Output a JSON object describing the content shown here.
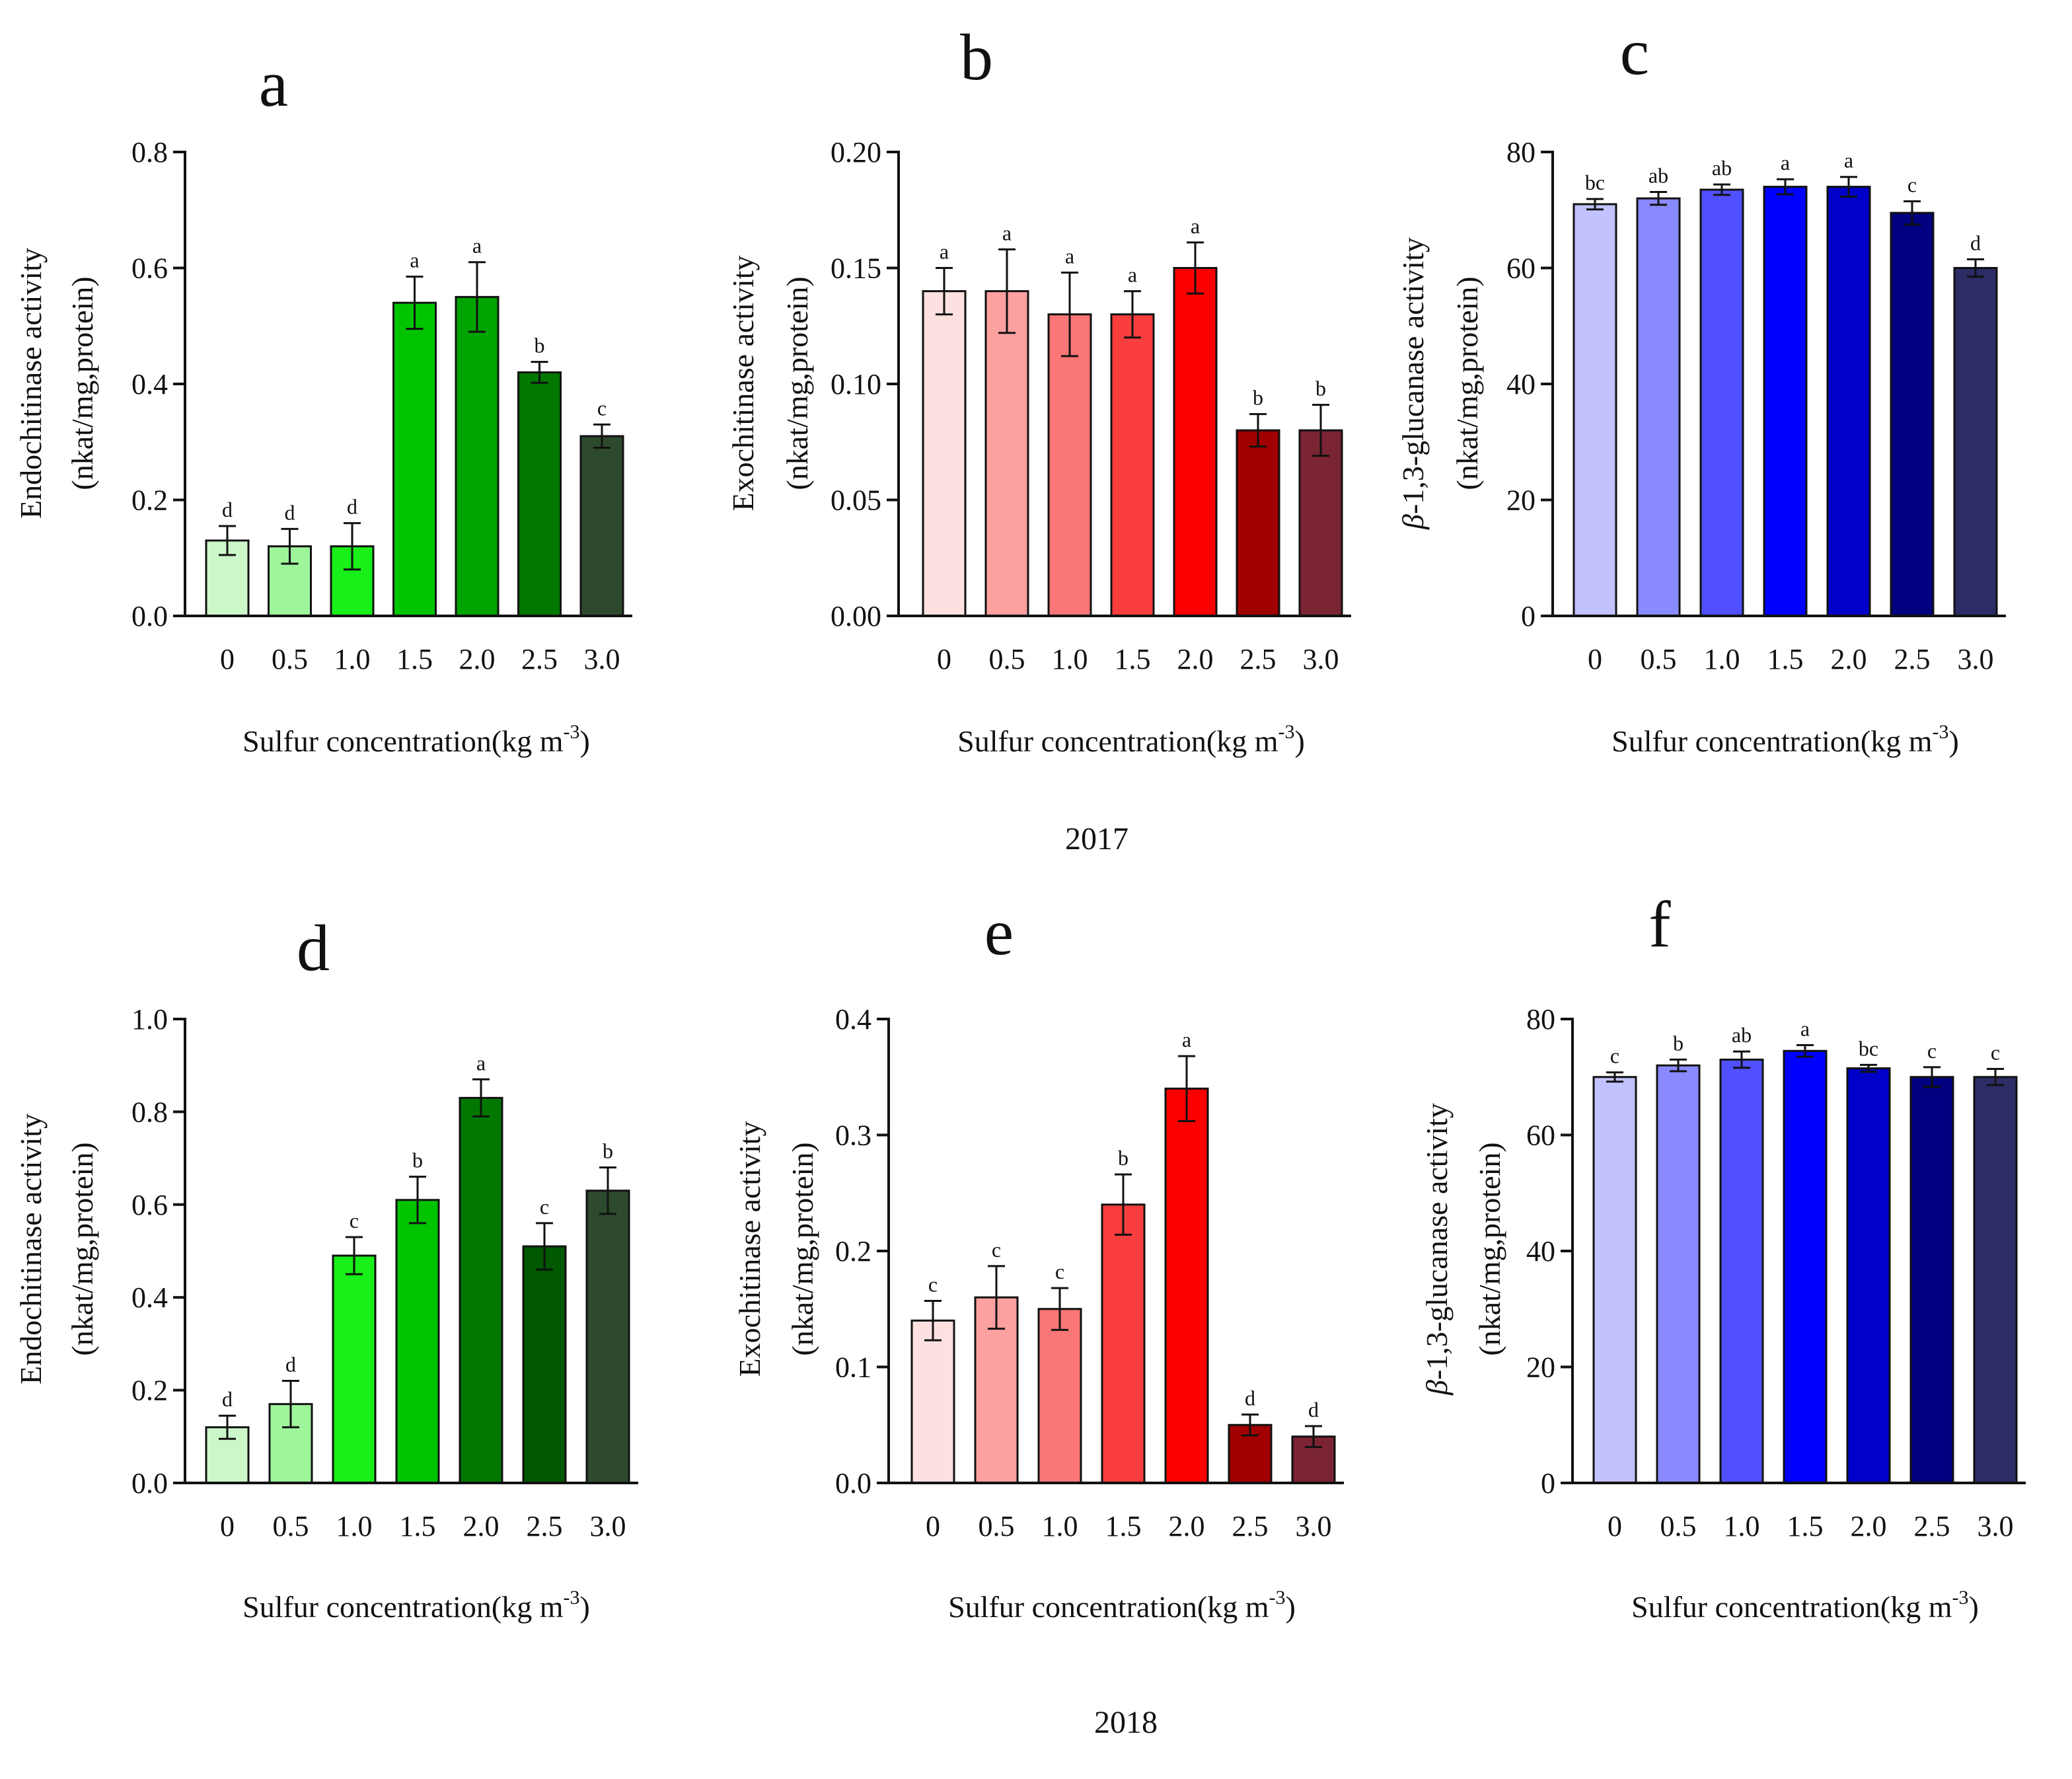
{
  "years": [
    "2017",
    "2018"
  ],
  "chart_data": [
    {
      "type": "bar",
      "panel": "a",
      "year": "2017",
      "ylabel_line1": "Endochitinase activity",
      "ylabel_line2": "(nkat/mg,protein)",
      "xlabel_main": "Sulfur concentration(kg m",
      "xlabel_sup": "-3",
      "xlabel_end": ")",
      "categories": [
        "0",
        "0.5",
        "1.0",
        "1.5",
        "2.0",
        "2.5",
        "3.0"
      ],
      "values": [
        0.13,
        0.12,
        0.12,
        0.54,
        0.55,
        0.42,
        0.31
      ],
      "errors": [
        0.025,
        0.03,
        0.04,
        0.045,
        0.06,
        0.018,
        0.02
      ],
      "letters": [
        "d",
        "d",
        "d",
        "a",
        "a",
        "b",
        "c"
      ],
      "colors": [
        "#ccf7c8",
        "#9ef59a",
        "#19ef19",
        "#00c400",
        "#00a400",
        "#007800",
        "#2e4a2e"
      ],
      "ylim": [
        0,
        0.8
      ],
      "yticks": [
        "0.0",
        "0.2",
        "0.4",
        "0.6",
        "0.8"
      ]
    },
    {
      "type": "bar",
      "panel": "b",
      "year": "2017",
      "ylabel_line1": "Exochitinase activity",
      "ylabel_line2": "(nkat/mg,protein)",
      "xlabel_main": "Sulfur concentration(kg m",
      "xlabel_sup": "-3",
      "xlabel_end": ")",
      "categories": [
        "0",
        "0.5",
        "1.0",
        "1.5",
        "2.0",
        "2.5",
        "3.0"
      ],
      "values": [
        0.14,
        0.14,
        0.13,
        0.13,
        0.15,
        0.08,
        0.08
      ],
      "errors": [
        0.01,
        0.018,
        0.018,
        0.01,
        0.011,
        0.007,
        0.011
      ],
      "letters": [
        "a",
        "a",
        "a",
        "a",
        "a",
        "b",
        "b"
      ],
      "colors": [
        "#fde0e0",
        "#fca0a0",
        "#fb7676",
        "#fa3e3e",
        "#fb0000",
        "#a00000",
        "#7a2434"
      ],
      "ylim": [
        0,
        0.2
      ],
      "yticks": [
        "0.00",
        "0.05",
        "0.10",
        "0.15",
        "0.20"
      ]
    },
    {
      "type": "bar",
      "panel": "c",
      "year": "2017",
      "ylabel_italic": "β",
      "ylabel_line1": "-1,3-glucanase activity",
      "ylabel_line2": "(nkat/mg,protein)",
      "xlabel_main": "Sulfur concentration(kg m",
      "xlabel_sup": "-3",
      "xlabel_end": ")",
      "categories": [
        "0",
        "0.5",
        "1.0",
        "1.5",
        "2.0",
        "2.5",
        "3.0"
      ],
      "values": [
        71,
        72,
        73.5,
        74,
        74,
        69.5,
        60
      ],
      "errors": [
        0.9,
        1.1,
        0.9,
        1.3,
        1.7,
        2.0,
        1.5
      ],
      "letters": [
        "bc",
        "ab",
        "ab",
        "a",
        "a",
        "c",
        "d"
      ],
      "colors": [
        "#c2c2ff",
        "#8a8aff",
        "#5050ff",
        "#0000ff",
        "#0000c8",
        "#000080",
        "#2c2c66"
      ],
      "ylim": [
        0,
        80
      ],
      "yticks": [
        "0",
        "20",
        "40",
        "60",
        "80"
      ]
    },
    {
      "type": "bar",
      "panel": "d",
      "year": "2018",
      "ylabel_line1": "Endochitinase activity",
      "ylabel_line2": "(nkat/mg,protein)",
      "xlabel_main": "Sulfur concentration(kg m",
      "xlabel_sup": "-3",
      "xlabel_end": ")",
      "categories": [
        "0",
        "0.5",
        "1.0",
        "1.5",
        "2.0",
        "2.5",
        "3.0"
      ],
      "values": [
        0.12,
        0.17,
        0.49,
        0.61,
        0.83,
        0.51,
        0.63
      ],
      "errors": [
        0.025,
        0.05,
        0.04,
        0.05,
        0.04,
        0.05,
        0.05
      ],
      "letters": [
        "d",
        "d",
        "c",
        "b",
        "a",
        "c",
        "b"
      ],
      "colors": [
        "#ccf7c8",
        "#9ef59a",
        "#19ef19",
        "#00c400",
        "#007800",
        "#005800",
        "#2e4a2e"
      ],
      "ylim": [
        0,
        1.0
      ],
      "yticks": [
        "0.0",
        "0.2",
        "0.4",
        "0.6",
        "0.8",
        "1.0"
      ]
    },
    {
      "type": "bar",
      "panel": "e",
      "year": "2018",
      "ylabel_line1": "Exochitinase activity",
      "ylabel_line2": "(nkat/mg,protein)",
      "xlabel_main": "Sulfur concentration(kg m",
      "xlabel_sup": "-3",
      "xlabel_end": ")",
      "categories": [
        "0",
        "0.5",
        "1.0",
        "1.5",
        "2.0",
        "2.5",
        "3.0"
      ],
      "values": [
        0.14,
        0.16,
        0.15,
        0.24,
        0.34,
        0.05,
        0.04
      ],
      "errors": [
        0.017,
        0.027,
        0.018,
        0.026,
        0.028,
        0.009,
        0.009
      ],
      "letters": [
        "c",
        "c",
        "c",
        "b",
        "a",
        "d",
        "d"
      ],
      "colors": [
        "#fde0e0",
        "#fca0a0",
        "#fb7676",
        "#fa3e3e",
        "#fb0000",
        "#a00000",
        "#7a2434"
      ],
      "ylim": [
        0,
        0.4
      ],
      "yticks": [
        "0.0",
        "0.1",
        "0.2",
        "0.3",
        "0.4"
      ]
    },
    {
      "type": "bar",
      "panel": "f",
      "year": "2018",
      "ylabel_italic": "β",
      "ylabel_line1": "-1,3-glucanase activity",
      "ylabel_line2": "(nkat/mg,protein)",
      "xlabel_main": "Sulfur concentration(kg m",
      "xlabel_sup": "-3",
      "xlabel_end": ")",
      "categories": [
        "0",
        "0.5",
        "1.0",
        "1.5",
        "2.0",
        "2.5",
        "3.0"
      ],
      "values": [
        70,
        72,
        73,
        74.5,
        71.5,
        70,
        70
      ],
      "errors": [
        0.8,
        1.0,
        1.4,
        1.0,
        0.6,
        1.7,
        1.4
      ],
      "letters": [
        "c",
        "b",
        "ab",
        "a",
        "bc",
        "c",
        "c"
      ],
      "colors": [
        "#c2c2ff",
        "#8a8aff",
        "#5050ff",
        "#0000ff",
        "#0000c8",
        "#000080",
        "#2c2c66"
      ],
      "ylim": [
        0,
        80
      ],
      "yticks": [
        "0",
        "20",
        "40",
        "60",
        "80"
      ]
    }
  ]
}
